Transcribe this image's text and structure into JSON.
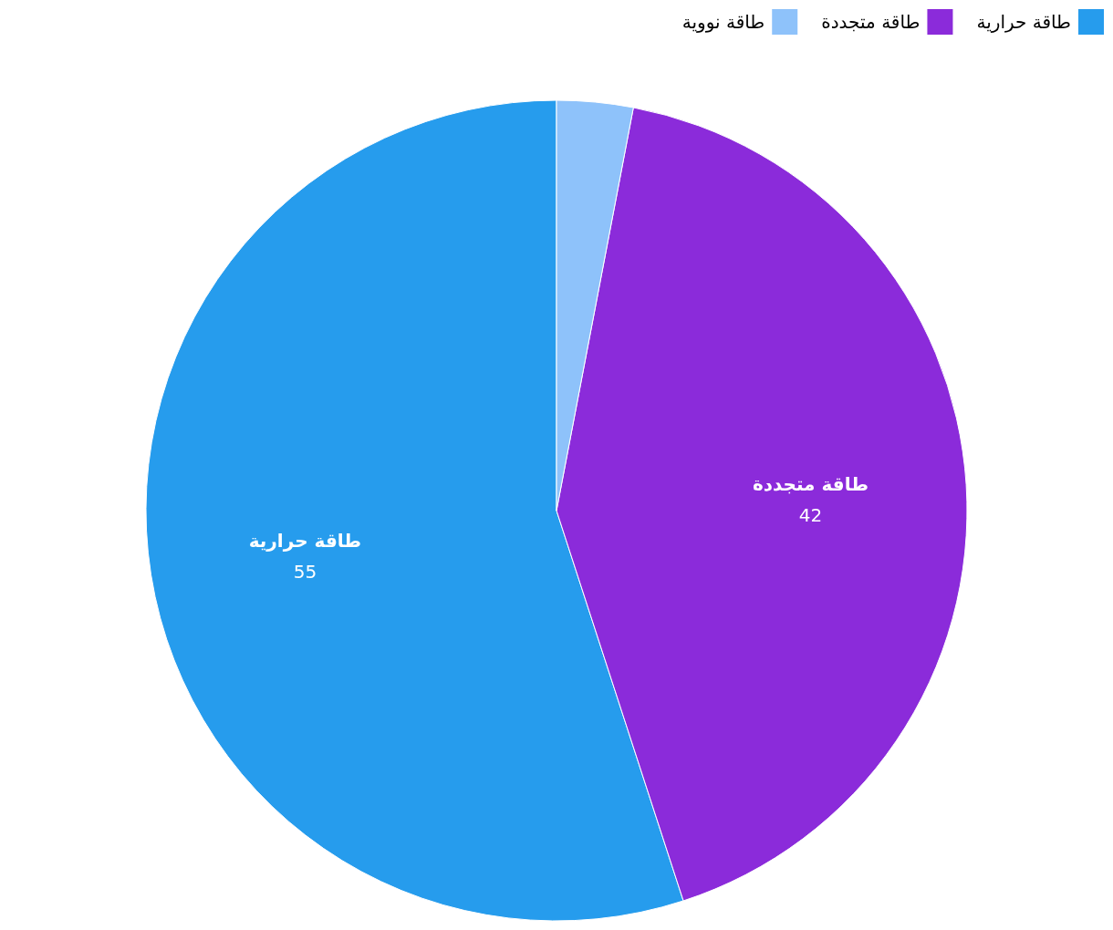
{
  "chart_data": {
    "type": "pie",
    "categories": [
      "طاقة حرارية",
      "طاقة متجددة",
      "طاقة نووية"
    ],
    "values": [
      55,
      42,
      3
    ],
    "colors": [
      "#269ced",
      "#8b2bda",
      "#8ec2fa"
    ],
    "value_labels": [
      "55",
      "42",
      null
    ],
    "legend": "top right"
  }
}
